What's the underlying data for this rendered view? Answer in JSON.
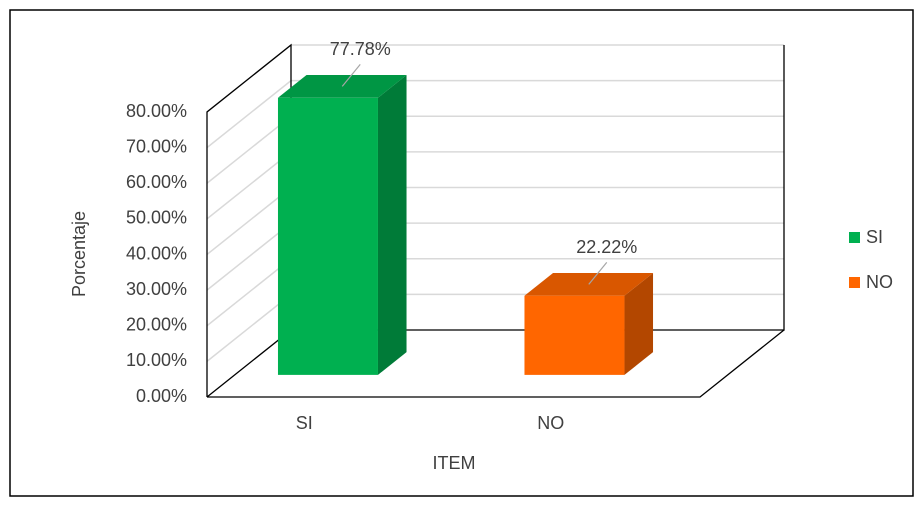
{
  "chart_data": {
    "type": "bar3d",
    "categories": [
      "SI",
      "NO"
    ],
    "values": [
      77.78,
      22.22
    ],
    "value_labels": [
      "77.78%",
      "22.22%"
    ],
    "colors": [
      "#00b050",
      "#ff6600"
    ],
    "ylim": [
      0,
      80
    ],
    "yticks": [
      {
        "value": 0,
        "label": "0.00%"
      },
      {
        "value": 10,
        "label": "10.00%"
      },
      {
        "value": 20,
        "label": "20.00%"
      },
      {
        "value": 30,
        "label": "30.00%"
      },
      {
        "value": 40,
        "label": "40.00%"
      },
      {
        "value": 50,
        "label": "50.00%"
      },
      {
        "value": 60,
        "label": "60.00%"
      },
      {
        "value": 70,
        "label": "70.00%"
      },
      {
        "value": 80,
        "label": "80.00%"
      }
    ],
    "y_label": "Porcentaje",
    "x_label": "ITEM",
    "grid": true,
    "legend": "right"
  }
}
